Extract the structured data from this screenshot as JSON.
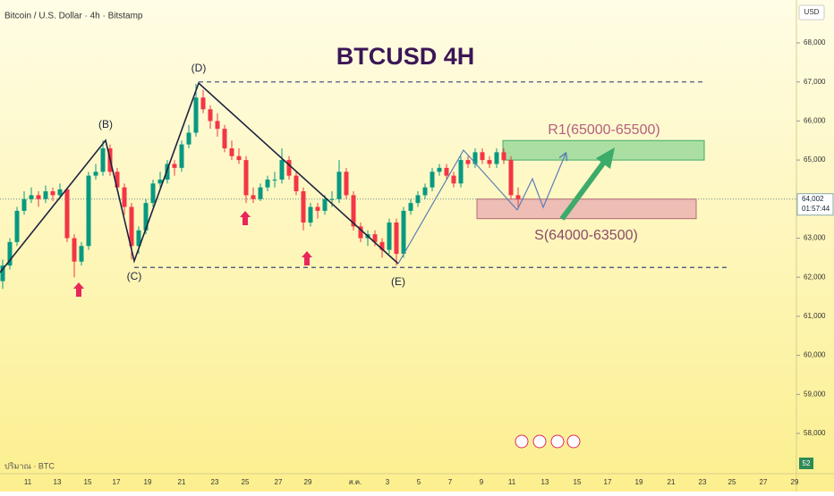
{
  "header": {
    "symbol": "Bitcoin / U.S. Dollar · 4h · Bitstamp",
    "currency": "USD"
  },
  "chart_data": {
    "type": "candlestick",
    "title": "BTCUSD 4H",
    "up_color": "#089981",
    "down_color": "#f23645",
    "ylim": [
      57000,
      69000
    ],
    "yticks": [
      {
        "value": 58000,
        "label": "58,000"
      },
      {
        "value": 59000,
        "label": "59,000"
      },
      {
        "value": 60000,
        "label": "60,000"
      },
      {
        "value": 61000,
        "label": "61,000"
      },
      {
        "value": 62000,
        "label": "62,000"
      },
      {
        "value": 63000,
        "label": "63,000"
      },
      {
        "value": 64000,
        "label": "64,000"
      },
      {
        "value": 65000,
        "label": "65,000"
      },
      {
        "value": 66000,
        "label": "66,000"
      },
      {
        "value": 67000,
        "label": "67,000"
      },
      {
        "value": 68000,
        "label": "68,000"
      }
    ],
    "time_labels": [
      "11",
      "13",
      "15",
      "17",
      "19",
      "21",
      "23",
      "25",
      "27",
      "29",
      "ส.ค.",
      "3",
      "5",
      "7",
      "9",
      "11",
      "13",
      "15",
      "17",
      "19",
      "21",
      "23",
      "25",
      "27",
      "29"
    ],
    "candles": [
      [
        61900,
        62450,
        61700,
        62300
      ],
      [
        62300,
        63000,
        62200,
        62900
      ],
      [
        62900,
        63800,
        62800,
        63700
      ],
      [
        63700,
        64200,
        63600,
        64000
      ],
      [
        64000,
        64300,
        63900,
        64100
      ],
      [
        64100,
        64200,
        63800,
        64000
      ],
      [
        64000,
        64350,
        63900,
        64200
      ],
      [
        64200,
        64300,
        63950,
        64100
      ],
      [
        64100,
        64400,
        64000,
        64250
      ],
      [
        64250,
        64300,
        62900,
        63000
      ],
      [
        63000,
        63100,
        62000,
        62400
      ],
      [
        62400,
        62900,
        62300,
        62800
      ],
      [
        62800,
        64700,
        62700,
        64600
      ],
      [
        64600,
        64900,
        64500,
        64700
      ],
      [
        64700,
        65500,
        64600,
        65300
      ],
      [
        65300,
        65400,
        64600,
        64700
      ],
      [
        64700,
        64800,
        64200,
        64300
      ],
      [
        64300,
        64400,
        63600,
        63800
      ],
      [
        63800,
        63900,
        62450,
        62800
      ],
      [
        62800,
        63300,
        62600,
        63200
      ],
      [
        63200,
        64000,
        63100,
        63900
      ],
      [
        63900,
        64500,
        63800,
        64400
      ],
      [
        64400,
        64700,
        64300,
        64500
      ],
      [
        64500,
        65000,
        64400,
        64900
      ],
      [
        64900,
        65000,
        64600,
        64800
      ],
      [
        64800,
        65500,
        64700,
        65400
      ],
      [
        65400,
        65900,
        65300,
        65700
      ],
      [
        65700,
        66950,
        65600,
        66600
      ],
      [
        66600,
        66800,
        66200,
        66300
      ],
      [
        66300,
        66400,
        65800,
        66000
      ],
      [
        66000,
        66200,
        65600,
        65800
      ],
      [
        65800,
        65900,
        65200,
        65300
      ],
      [
        65300,
        65500,
        65000,
        65100
      ],
      [
        65100,
        65300,
        64900,
        65000
      ],
      [
        65000,
        65100,
        63900,
        64100
      ],
      [
        64100,
        64300,
        63900,
        64000
      ],
      [
        64000,
        64400,
        63950,
        64300
      ],
      [
        64300,
        64600,
        64200,
        64500
      ],
      [
        64500,
        64700,
        64300,
        64500
      ],
      [
        64500,
        65300,
        64400,
        65000
      ],
      [
        65000,
        65100,
        64500,
        64600
      ],
      [
        64600,
        64700,
        64100,
        64200
      ],
      [
        64200,
        64300,
        63200,
        63400
      ],
      [
        63400,
        63900,
        63300,
        63800
      ],
      [
        63800,
        63900,
        63500,
        63700
      ],
      [
        63700,
        64100,
        63600,
        64000
      ],
      [
        64000,
        64200,
        63800,
        64000
      ],
      [
        64000,
        65000,
        63900,
        64700
      ],
      [
        64700,
        64800,
        64000,
        64100
      ],
      [
        64100,
        64200,
        63200,
        63300
      ],
      [
        63300,
        63400,
        62900,
        63000
      ],
      [
        63000,
        63200,
        62800,
        63100
      ],
      [
        63100,
        63200,
        62800,
        62900
      ],
      [
        62900,
        63000,
        62500,
        62700
      ],
      [
        62700,
        63500,
        62600,
        63400
      ],
      [
        63400,
        63500,
        62300,
        62600
      ],
      [
        62600,
        63800,
        62500,
        63700
      ],
      [
        63700,
        64000,
        63600,
        63900
      ],
      [
        63900,
        64200,
        63800,
        64100
      ],
      [
        64100,
        64400,
        64000,
        64300
      ],
      [
        64300,
        64800,
        64200,
        64700
      ],
      [
        64700,
        64900,
        64600,
        64800
      ],
      [
        64800,
        64900,
        64500,
        64600
      ],
      [
        64600,
        64700,
        64300,
        64400
      ],
      [
        64400,
        65100,
        64300,
        65000
      ],
      [
        65000,
        65100,
        64800,
        64900
      ],
      [
        64900,
        65300,
        64800,
        65200
      ],
      [
        65200,
        65300,
        64900,
        65000
      ],
      [
        65000,
        65100,
        64800,
        64900
      ],
      [
        64900,
        65300,
        64800,
        65200
      ],
      [
        65200,
        65300,
        64900,
        65000
      ],
      [
        65000,
        65100,
        64000,
        64100
      ],
      [
        64100,
        64300,
        63800,
        64002
      ]
    ],
    "last_price": {
      "value": 64002,
      "label": "64,002"
    },
    "countdown": "01:57:44",
    "levels": [
      67000,
      62250
    ],
    "wave_labels": [
      "(B)",
      "(C)",
      "(D)",
      "(E)"
    ],
    "zones": [
      {
        "label": "R1(65000-65500)",
        "low": 65000,
        "high": 65500,
        "color": "#8fd694"
      },
      {
        "label": "S(64000-63500)",
        "low": 63500,
        "high": 64000,
        "color": "#e8a9b0"
      }
    ],
    "volume_label": "ปริมาณ · BTC",
    "volume_value": 52
  }
}
